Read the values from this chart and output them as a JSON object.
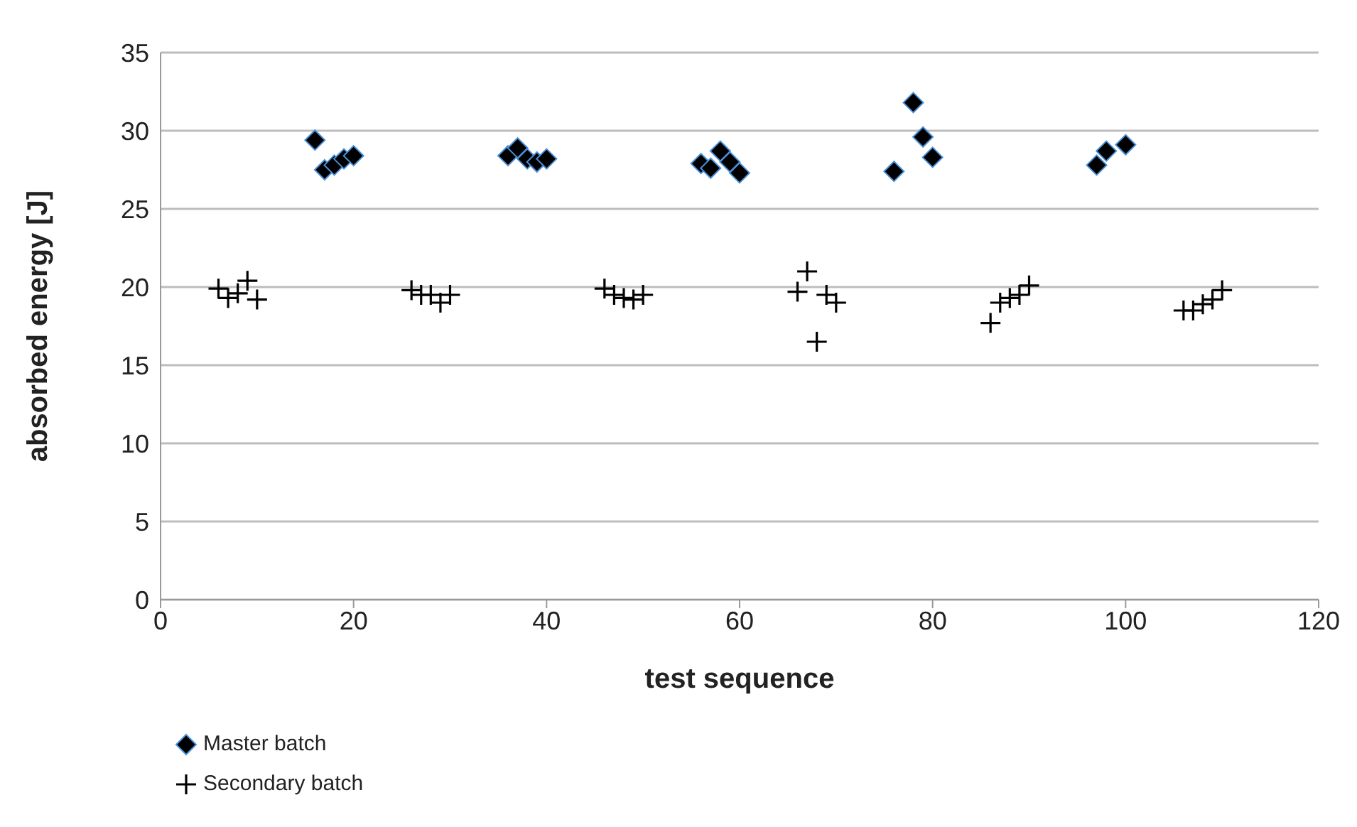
{
  "chart_data": {
    "type": "scatter",
    "xlabel": "test sequence",
    "ylabel": "absorbed energy [J]",
    "xlim": [
      0,
      120
    ],
    "xticks": [
      0,
      20,
      40,
      60,
      80,
      100,
      120
    ],
    "ylim": [
      0,
      35
    ],
    "yticks": [
      0,
      5,
      10,
      15,
      20,
      25,
      30,
      35
    ],
    "grid": "y",
    "legend": "bottom left",
    "series": [
      {
        "name": "Master batch",
        "color": "#000000",
        "marker": "diamond",
        "x": [
          16,
          17,
          18,
          19,
          20,
          36,
          37,
          38,
          39,
          40,
          56,
          57,
          58,
          59,
          60,
          76,
          78,
          79,
          80,
          97,
          98,
          100
        ],
        "values": [
          29.4,
          27.5,
          27.8,
          28.2,
          28.4,
          28.4,
          28.9,
          28.2,
          28.0,
          28.2,
          27.9,
          27.6,
          28.7,
          28.0,
          27.3,
          27.4,
          31.8,
          29.6,
          28.3,
          27.8,
          28.7,
          29.1
        ]
      },
      {
        "name": "Secondary batch",
        "color": "#000000",
        "marker": "cross",
        "x": [
          6,
          7,
          8,
          9,
          10,
          26,
          27,
          28,
          29,
          30,
          46,
          47,
          48,
          49,
          50,
          66,
          67,
          68,
          69,
          70,
          86,
          87,
          88,
          89,
          90,
          106,
          107,
          108,
          109,
          110
        ],
        "values": [
          19.9,
          19.3,
          19.6,
          20.4,
          19.2,
          19.8,
          19.5,
          19.5,
          19.0,
          19.5,
          19.9,
          19.5,
          19.3,
          19.2,
          19.5,
          19.7,
          21.0,
          16.5,
          19.5,
          19.0,
          17.7,
          19.0,
          19.3,
          19.5,
          20.1,
          18.5,
          18.5,
          18.9,
          19.2,
          19.8
        ]
      }
    ]
  }
}
